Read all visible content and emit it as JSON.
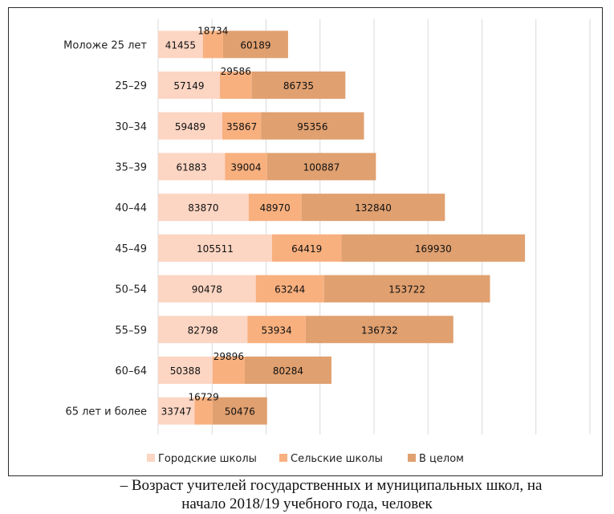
{
  "chart_data": {
    "type": "bar",
    "orientation": "horizontal",
    "stacked": true,
    "categories": [
      "Моложе 25 лет",
      "25–29",
      "30–34",
      "35–39",
      "40–44",
      "45–49",
      "50–54",
      "55–59",
      "60–64",
      "65 лет и более"
    ],
    "series": [
      {
        "name": "Городские школы",
        "color": "#fcd5c3",
        "values": [
          41455,
          57149,
          59489,
          61883,
          83870,
          105511,
          90478,
          82798,
          50388,
          33747
        ]
      },
      {
        "name": "Сельские школы",
        "color": "#f8b07f",
        "values": [
          18734,
          29586,
          35867,
          39004,
          48970,
          64419,
          63244,
          53934,
          29896,
          16729
        ]
      },
      {
        "name": "В целом",
        "color": "#e0a070",
        "values": [
          60189,
          86735,
          95356,
          100887,
          132840,
          169930,
          153722,
          136732,
          80284,
          50476
        ]
      }
    ],
    "xlim": [
      0,
      400000
    ],
    "grid": true,
    "legend": "bottom"
  },
  "caption": {
    "line1": "– Возраст учителей государственных и муниципальных школ, на",
    "line2": "начало 2018/19 учебного года, человек"
  }
}
